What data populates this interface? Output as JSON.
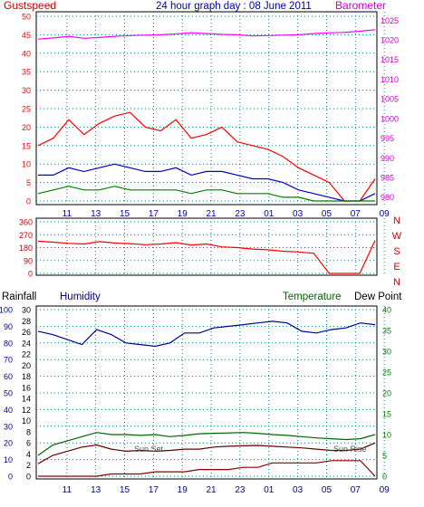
{
  "title": "24 hour graph day : 08 June 2011",
  "colors": {
    "gust": "#ff0000",
    "wind_avg": "#0000cc",
    "wind_min": "#008000",
    "barometer": "#ff00ff",
    "direction": "#ff0000",
    "humidity": "#000099",
    "temperature": "#006600",
    "dew_point": "#660000",
    "rainfall": "#8b0000",
    "left_axis_text": "#0000aa",
    "right_axis_text": "#008000",
    "barometer_text": "#cc00cc",
    "direction_text": "#cc0000",
    "grid": "#008080"
  },
  "x_ticks": [
    "11",
    "13",
    "15",
    "17",
    "19",
    "21",
    "23",
    "01",
    "03",
    "05",
    "07",
    "09"
  ],
  "chart_data": [
    {
      "type": "line",
      "id": "wind-barometer",
      "title": "",
      "y_left_label": "Gustspeed",
      "y_right_label": "Barometer",
      "y_left_ticks": [
        "0",
        "5",
        "10",
        "15",
        "20",
        "25",
        "30",
        "35",
        "40",
        "45",
        "50"
      ],
      "y_left_range": [
        0,
        50
      ],
      "y_right_ticks": [
        "980",
        "985",
        "990",
        "995",
        "1000",
        "1005",
        "1010",
        "1015",
        "1020",
        "1025"
      ],
      "y_right_range": [
        979,
        1026
      ],
      "series": [
        {
          "name": "Gustspeed",
          "axis": "left",
          "values": [
            15,
            17,
            22,
            18,
            21,
            23,
            24,
            20,
            19,
            22,
            17,
            18,
            20,
            16,
            15,
            14,
            12,
            9,
            7,
            5,
            0,
            0,
            6
          ]
        },
        {
          "name": "",
          "axis": "left",
          "values": [
            7,
            7,
            9,
            8,
            9,
            10,
            9,
            8,
            8,
            9,
            7,
            8,
            8,
            7,
            6,
            6,
            5,
            3,
            2,
            1,
            0,
            0,
            2
          ]
        },
        {
          "name": "",
          "axis": "left",
          "values": [
            2,
            3,
            4,
            3,
            3,
            4,
            3,
            3,
            3,
            3,
            2,
            3,
            3,
            2,
            2,
            2,
            1,
            1,
            0,
            0,
            0,
            0,
            0
          ]
        },
        {
          "name": "Barometer",
          "axis": "right",
          "values": [
            1020.2,
            1020.5,
            1020.9,
            1020.4,
            1020.6,
            1020.9,
            1021.1,
            1021.2,
            1021.3,
            1021.5,
            1021.8,
            1021.6,
            1021.4,
            1021.3,
            1021.0,
            1021.1,
            1021.2,
            1021.3,
            1021.6,
            1021.8,
            1021.9,
            1022.2,
            1022.6
          ]
        }
      ]
    },
    {
      "type": "line",
      "id": "wind-direction",
      "title": "",
      "y_ticks": [
        "360",
        "270",
        "180",
        "90",
        "0"
      ],
      "y_range": [
        0,
        360
      ],
      "right_labels": [
        "N",
        "W",
        "S",
        "E",
        "N"
      ],
      "series": [
        {
          "name": "",
          "values": [
            225,
            218,
            210,
            205,
            222,
            212,
            208,
            200,
            205,
            215,
            198,
            205,
            185,
            180,
            170,
            165,
            155,
            150,
            140,
            0,
            0,
            0,
            230
          ]
        }
      ]
    },
    {
      "type": "line",
      "id": "humidity-temperature",
      "title": "",
      "labels": {
        "rainfall": "Rainfall",
        "humidity": "Humidity",
        "temperature": "Temperature",
        "dew_point": "Dew Point"
      },
      "annotations": {
        "sunset": "Sun Set",
        "sunrise": "Sun Rise"
      },
      "y_humidity_ticks": [
        "100",
        "90",
        "80",
        "70",
        "60",
        "50",
        "40",
        "30",
        "20",
        "10",
        "0"
      ],
      "y_humidity_range": [
        0,
        100
      ],
      "y_rain_ticks": [
        "30",
        "28",
        "26",
        "24",
        "22",
        "20",
        "18",
        "16",
        "14",
        "12",
        "10",
        "8",
        "6",
        "4",
        "2",
        "0"
      ],
      "y_rain_range": [
        0,
        30
      ],
      "y_temp_ticks": [
        "40",
        "35",
        "30",
        "25",
        "20",
        "15",
        "10",
        "5",
        "0"
      ],
      "y_temp_range": [
        0,
        40
      ],
      "series": [
        {
          "name": "Humidity",
          "axis": "humidity",
          "values": [
            87,
            85,
            82,
            79,
            88,
            85,
            80,
            79,
            78,
            80,
            86,
            86,
            89,
            90,
            91,
            92,
            93,
            92,
            87,
            86,
            88,
            89,
            92,
            91
          ]
        },
        {
          "name": "Temperature",
          "axis": "temp",
          "values": [
            5,
            7.5,
            8.5,
            9.5,
            10.5,
            10,
            10,
            9.8,
            10,
            9.5,
            9.8,
            10.2,
            10.3,
            10.4,
            10.5,
            10.3,
            10,
            9.8,
            9.5,
            9.2,
            9,
            8.8,
            9,
            10
          ]
        },
        {
          "name": "Dew Point",
          "axis": "temp",
          "values": [
            3,
            5,
            6,
            7,
            7.5,
            6.5,
            6,
            6.2,
            6,
            6.2,
            6.5,
            6.5,
            7,
            7.2,
            7.3,
            7.4,
            7.2,
            7,
            6.8,
            6.5,
            6.2,
            6.2,
            6.5,
            8
          ]
        },
        {
          "name": "Rainfall",
          "axis": "rain",
          "values": [
            0,
            0,
            0,
            0,
            0,
            0.4,
            0.4,
            0.4,
            0.8,
            0.8,
            0.8,
            1.2,
            1.2,
            1.2,
            1.6,
            1.6,
            2.4,
            2.4,
            2.4,
            2.4,
            2.8,
            2.8,
            2.8,
            0
          ]
        }
      ]
    }
  ]
}
